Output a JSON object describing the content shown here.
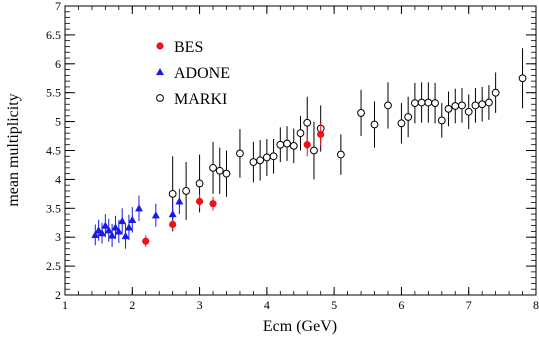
{
  "chart_data": {
    "type": "scatter",
    "title": "",
    "xlabel": "Ecm (GeV)",
    "ylabel": "mean multiplicity",
    "xlim": [
      1,
      8
    ],
    "ylim": [
      2,
      7
    ],
    "xticks": [
      "1",
      "2",
      "3",
      "4",
      "5",
      "6",
      "7",
      "8"
    ],
    "yticks": [
      "2",
      "2.5",
      "3",
      "3.5",
      "4",
      "4.5",
      "5",
      "5.5",
      "6",
      "6.5",
      "7"
    ],
    "grid": false,
    "legend_position": "top-left",
    "series": [
      {
        "name": "BES",
        "marker": "filled-circle",
        "color": "#e8141c",
        "points": [
          {
            "x": 2.2,
            "y": 2.93,
            "err": 0.1
          },
          {
            "x": 2.6,
            "y": 3.22,
            "err": 0.1
          },
          {
            "x": 3.0,
            "y": 3.62,
            "err": 0.12
          },
          {
            "x": 3.2,
            "y": 3.58,
            "err": 0.12
          },
          {
            "x": 4.6,
            "y": 4.6,
            "err": 0.2
          },
          {
            "x": 4.8,
            "y": 4.78,
            "err": 0.2
          }
        ]
      },
      {
        "name": "ADONE",
        "marker": "filled-triangle",
        "color": "#1a1ae6",
        "points": [
          {
            "x": 1.45,
            "y": 3.04,
            "err": 0.18
          },
          {
            "x": 1.5,
            "y": 3.12,
            "err": 0.18
          },
          {
            "x": 1.55,
            "y": 3.07,
            "err": 0.18
          },
          {
            "x": 1.6,
            "y": 3.2,
            "err": 0.2
          },
          {
            "x": 1.65,
            "y": 3.12,
            "err": 0.2
          },
          {
            "x": 1.7,
            "y": 3.03,
            "err": 0.2
          },
          {
            "x": 1.75,
            "y": 3.17,
            "err": 0.2
          },
          {
            "x": 1.8,
            "y": 3.1,
            "err": 0.2
          },
          {
            "x": 1.85,
            "y": 3.28,
            "err": 0.22
          },
          {
            "x": 1.9,
            "y": 3.02,
            "err": 0.22
          },
          {
            "x": 1.95,
            "y": 3.17,
            "err": 0.22
          },
          {
            "x": 2.0,
            "y": 3.3,
            "err": 0.22
          },
          {
            "x": 2.1,
            "y": 3.5,
            "err": 0.22
          },
          {
            "x": 2.35,
            "y": 3.38,
            "err": 0.2
          },
          {
            "x": 2.6,
            "y": 3.4,
            "err": 0.22
          },
          {
            "x": 2.7,
            "y": 3.62,
            "err": 0.22
          }
        ]
      },
      {
        "name": "MARKI",
        "marker": "open-circle",
        "color": "#000000",
        "points": [
          {
            "x": 2.6,
            "y": 3.75,
            "err": 0.65
          },
          {
            "x": 2.8,
            "y": 3.8,
            "err": 0.5
          },
          {
            "x": 3.0,
            "y": 3.93,
            "err": 0.5
          },
          {
            "x": 3.2,
            "y": 4.2,
            "err": 0.45
          },
          {
            "x": 3.3,
            "y": 4.15,
            "err": 0.4
          },
          {
            "x": 3.4,
            "y": 4.1,
            "err": 0.4
          },
          {
            "x": 3.6,
            "y": 4.45,
            "err": 0.42
          },
          {
            "x": 3.8,
            "y": 4.3,
            "err": 0.35
          },
          {
            "x": 3.9,
            "y": 4.33,
            "err": 0.35
          },
          {
            "x": 4.0,
            "y": 4.38,
            "err": 0.32
          },
          {
            "x": 4.1,
            "y": 4.4,
            "err": 0.3
          },
          {
            "x": 4.2,
            "y": 4.6,
            "err": 0.3
          },
          {
            "x": 4.3,
            "y": 4.62,
            "err": 0.3
          },
          {
            "x": 4.4,
            "y": 4.58,
            "err": 0.3
          },
          {
            "x": 4.5,
            "y": 4.8,
            "err": 0.3
          },
          {
            "x": 4.6,
            "y": 4.98,
            "err": 0.45
          },
          {
            "x": 4.7,
            "y": 4.5,
            "err": 0.5
          },
          {
            "x": 4.8,
            "y": 4.88,
            "err": 0.4
          },
          {
            "x": 5.1,
            "y": 4.43,
            "err": 0.35
          },
          {
            "x": 5.4,
            "y": 5.15,
            "err": 0.4
          },
          {
            "x": 5.6,
            "y": 4.95,
            "err": 0.4
          },
          {
            "x": 5.8,
            "y": 5.28,
            "err": 0.4
          },
          {
            "x": 6.0,
            "y": 4.97,
            "err": 0.35
          },
          {
            "x": 6.1,
            "y": 5.08,
            "err": 0.35
          },
          {
            "x": 6.2,
            "y": 5.32,
            "err": 0.35
          },
          {
            "x": 6.3,
            "y": 5.33,
            "err": 0.35
          },
          {
            "x": 6.4,
            "y": 5.33,
            "err": 0.35
          },
          {
            "x": 6.5,
            "y": 5.32,
            "err": 0.35
          },
          {
            "x": 6.6,
            "y": 5.02,
            "err": 0.3
          },
          {
            "x": 6.7,
            "y": 5.22,
            "err": 0.3
          },
          {
            "x": 6.8,
            "y": 5.27,
            "err": 0.3
          },
          {
            "x": 6.9,
            "y": 5.28,
            "err": 0.3
          },
          {
            "x": 7.0,
            "y": 5.17,
            "err": 0.3
          },
          {
            "x": 7.1,
            "y": 5.28,
            "err": 0.3
          },
          {
            "x": 7.2,
            "y": 5.3,
            "err": 0.3
          },
          {
            "x": 7.3,
            "y": 5.33,
            "err": 0.3
          },
          {
            "x": 7.4,
            "y": 5.5,
            "err": 0.35
          },
          {
            "x": 7.8,
            "y": 5.75,
            "err": 0.52
          }
        ]
      }
    ]
  }
}
